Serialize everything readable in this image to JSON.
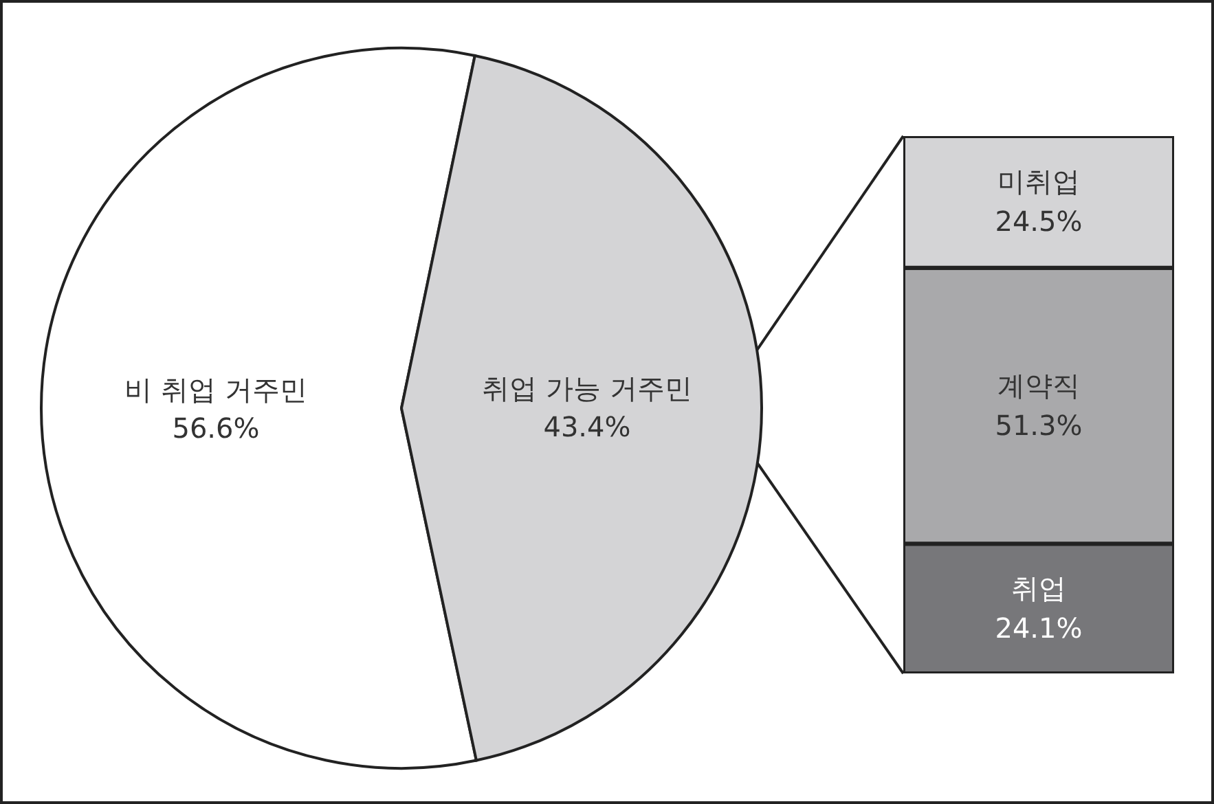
{
  "chart_data": [
    {
      "type": "pie",
      "categories": [
        "비 취업 거주민",
        "취업 가능 거주민"
      ],
      "values": [
        56.6,
        43.4
      ],
      "colors": [
        "#ffffff",
        "#d4d4d6"
      ],
      "value_labels": [
        "56.6%",
        "43.4%"
      ]
    },
    {
      "type": "bar",
      "stacked": true,
      "categories": [
        null
      ],
      "series": [
        {
          "name": "취업",
          "color": "#77777a",
          "values": [
            24.1
          ],
          "value_labels": [
            "24.1%"
          ]
        },
        {
          "name": "계약직",
          "color": "#a9a9ab",
          "values": [
            51.3
          ],
          "value_labels": [
            "51.3%"
          ]
        },
        {
          "name": "미취업",
          "color": "#d4d4d6",
          "values": [
            24.5
          ],
          "value_labels": [
            "24.5%"
          ]
        }
      ]
    }
  ]
}
